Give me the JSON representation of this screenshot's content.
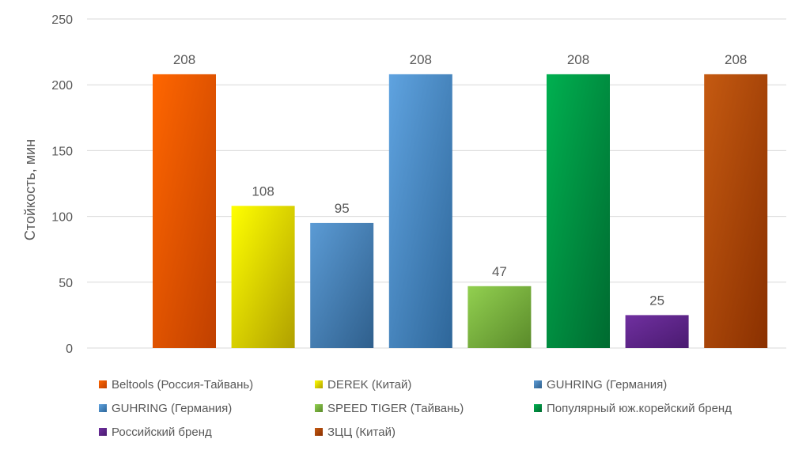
{
  "chart_data": {
    "type": "bar",
    "ylabel": "Стойкость, мин",
    "ylim": [
      0,
      250
    ],
    "yticks": [
      0,
      50,
      100,
      150,
      200,
      250
    ],
    "grid": true,
    "legend_position": "bottom",
    "series": [
      {
        "name": "Beltools (Россия-Тайвань)",
        "value": 208,
        "color": "#ff6600",
        "color_dark": "#c04000"
      },
      {
        "name": "DEREK (Китай)",
        "value": 108,
        "color": "#ffff00",
        "color_dark": "#b0a000"
      },
      {
        "name": "GUHRING (Германия)",
        "value": 95,
        "color": "#5b9bd5",
        "color_dark": "#2f5f8c"
      },
      {
        "name": "GUHRING (Германия)",
        "value": 208,
        "color": "#5fa3e0",
        "color_dark": "#2e6699"
      },
      {
        "name": "SPEED TIGER (Тайвань)",
        "value": 47,
        "color": "#92d050",
        "color_dark": "#5a8a2a"
      },
      {
        "name": "Популярный юж.корейский бренд",
        "value": 208,
        "color": "#00b050",
        "color_dark": "#006a30"
      },
      {
        "name": "Российский бренд",
        "value": 25,
        "color": "#7030a0",
        "color_dark": "#4a1a70"
      },
      {
        "name": "ЗЦЦ (Китай)",
        "value": 208,
        "color": "#c55a11",
        "color_dark": "#8a3000"
      }
    ]
  }
}
